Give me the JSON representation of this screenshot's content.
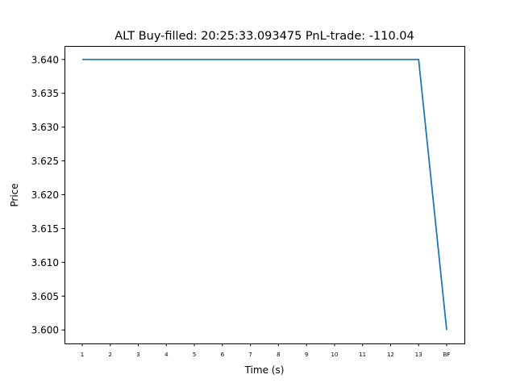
{
  "chart_data": {
    "type": "line",
    "title": "ALT  Buy-filled:  20:25:33.093475  PnL-trade:  -110.04",
    "xlabel": "Time (s)",
    "ylabel": "Price",
    "categories": [
      "1",
      "2",
      "3",
      "4",
      "5",
      "6",
      "7",
      "8",
      "9",
      "10",
      "11",
      "12",
      "13",
      "BF"
    ],
    "series": [
      {
        "color": "#1f77b4",
        "values": [
          3.64,
          3.64,
          3.64,
          3.64,
          3.64,
          3.64,
          3.64,
          3.64,
          3.64,
          3.64,
          3.64,
          3.64,
          3.64,
          3.6
        ]
      }
    ],
    "ylim": [
      3.598,
      3.642
    ],
    "yticks": [
      "3.600",
      "3.605",
      "3.610",
      "3.615",
      "3.620",
      "3.625",
      "3.630",
      "3.635",
      "3.640"
    ],
    "grid": false,
    "legend": "none"
  }
}
